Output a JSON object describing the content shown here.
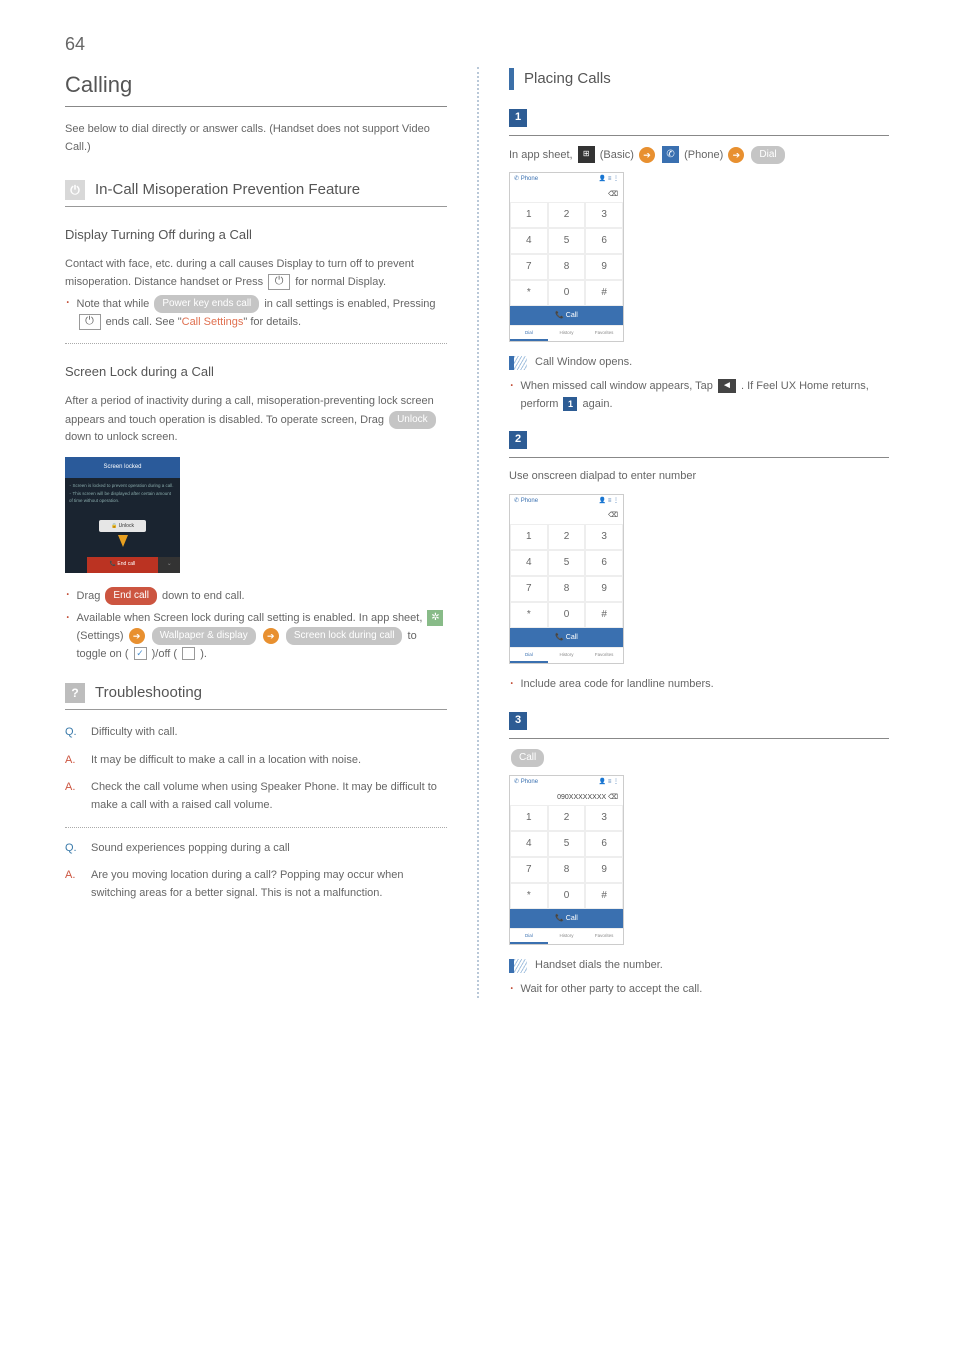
{
  "page_number": "64",
  "left": {
    "title": "Calling",
    "intro": "See below to dial directly or answer calls. (Handset does not support Video Call.)",
    "sec1": {
      "title": "In-Call Misoperation Prevention Feature",
      "sub1_title": "Display Turning Off during a Call",
      "sub1_body": "Contact with face, etc. during a call causes Display to turn off to prevent misoperation. Distance handset or Press ",
      "sub1_tail": " for normal Display.",
      "note1_a": "Note that while ",
      "note1_label": "Power key ends call",
      "note1_b": " in call settings is enabled, Pressing ",
      "note1_c": " ends call. See \"",
      "note1_link": "Call Settings",
      "note1_d": "\" for details.",
      "sub2_title": "Screen Lock during a Call",
      "sub2_body_a": "After a period of inactivity during a call, misoperation-preventing lock screen appears and touch operation is disabled. To operate screen, Drag ",
      "sub2_unlock": "Unlock",
      "sub2_body_b": " down to unlock screen.",
      "lock_banner": "Screen locked",
      "lock_unlock": "Unlock",
      "lock_end": "End call",
      "bullet1_a": "Drag ",
      "bullet1_label": "End call",
      "bullet1_b": " down to end call.",
      "bullet2_a": "Available when Screen lock during call setting is enabled. In app sheet, ",
      "bullet2_settings": " (Settings) ",
      "bullet2_wall": "Wallpaper & display",
      "bullet2_lock": "Screen lock during call",
      "bullet2_b": " to toggle on (",
      "bullet2_c": ")/off (",
      "bullet2_d": ")."
    },
    "sec2": {
      "title": "Troubleshooting",
      "q1": "Difficulty with call.",
      "a1": "It may be difficult to make a call in a location with noise.",
      "a2": "Check the call volume when using Speaker Phone. It may be difficult to make a call with a raised call volume.",
      "q2": "Sound experiences popping during a call",
      "a3": "Are you moving location during a call? Popping may occur when switching areas for a better signal. This is not a malfunction."
    }
  },
  "right": {
    "title": "Placing Calls",
    "step1_line_a": "In app sheet, ",
    "step1_basic": " (Basic) ",
    "step1_phone": " (Phone) ",
    "step1_dial": "Dial",
    "result1": "Call Window opens.",
    "note1_a": "When missed call window appears, Tap ",
    "note1_b": ". If Feel UX Home returns, perform ",
    "note1_c": " again.",
    "step2_line": "Use onscreen dialpad to enter number",
    "note2": "Include area code for landline numbers.",
    "step3_call": "Call",
    "phone_number": "090XXXXXXXX",
    "result3": "Handset dials the number.",
    "note3": "Wait for other party to accept the call.",
    "dialpad": {
      "header_left": "Phone",
      "keys": [
        "1",
        "2",
        "3",
        "4",
        "5",
        "6",
        "7",
        "8",
        "9",
        "*",
        "0",
        "#"
      ],
      "call": "Call",
      "tabs": [
        "Dial",
        "History",
        "Favorites"
      ]
    }
  },
  "labels": {
    "q": "Q.",
    "a": "A."
  }
}
